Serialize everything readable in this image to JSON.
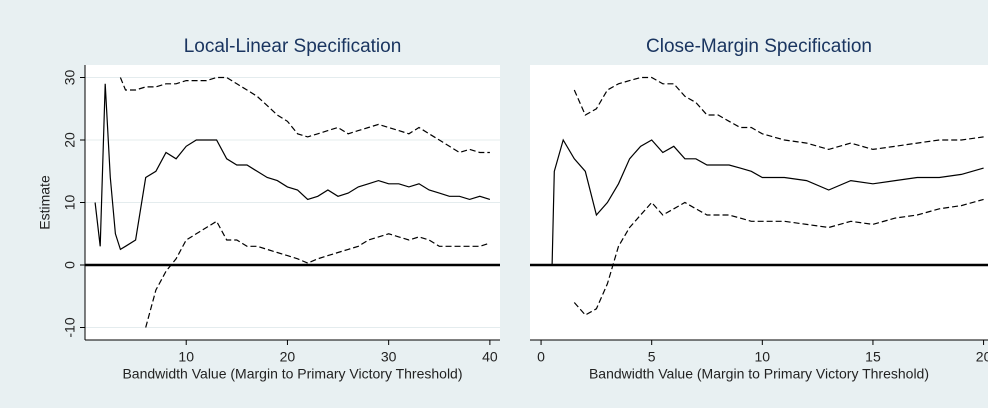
{
  "chart_data": [
    {
      "type": "line",
      "title": "Local-Linear Specification",
      "xlabel": "Bandwidth Value (Margin to Primary Victory Threshold)",
      "ylabel": "Estimate",
      "x": [
        1,
        1.5,
        2,
        2.5,
        3,
        3.5,
        4,
        5,
        6,
        7,
        8,
        9,
        10,
        11,
        12,
        13,
        14,
        15,
        16,
        17,
        18,
        19,
        20,
        21,
        22,
        23,
        24,
        25,
        26,
        27,
        28,
        29,
        30,
        31,
        32,
        33,
        34,
        35,
        36,
        37,
        38,
        39,
        40
      ],
      "series": [
        {
          "color": "#000000",
          "dash": false,
          "values": [
            10,
            3,
            29,
            14,
            5,
            2.5,
            3,
            4,
            14,
            15,
            18,
            17,
            19,
            20,
            20,
            20,
            17,
            16,
            16,
            15,
            14,
            13.5,
            12.5,
            12,
            10.5,
            11,
            12,
            11,
            11.5,
            12.5,
            13,
            13.5,
            13,
            13,
            12.5,
            13,
            12,
            11.5,
            11,
            11,
            10.5,
            11,
            10.5
          ]
        },
        {
          "color": "#000000",
          "dash": true,
          "values": [
            null,
            null,
            null,
            null,
            null,
            30,
            28,
            28,
            28.5,
            28.5,
            29,
            29,
            29.5,
            29.5,
            29.5,
            30,
            30,
            29,
            28,
            27,
            25.5,
            24,
            23,
            21,
            20.5,
            21,
            21.5,
            22,
            21,
            21.5,
            22,
            22.5,
            22,
            21.5,
            21,
            22,
            21,
            20,
            19,
            18,
            18.5,
            18,
            18
          ]
        },
        {
          "color": "#000000",
          "dash": true,
          "values": [
            null,
            null,
            null,
            null,
            null,
            null,
            null,
            null,
            -10,
            -4,
            -1,
            1,
            4,
            5,
            6,
            7,
            4,
            4,
            3,
            3,
            2.5,
            2,
            1.5,
            1,
            0.3,
            1,
            1.5,
            2,
            2.5,
            3,
            4,
            4.5,
            5,
            4.5,
            4,
            4.5,
            4,
            3,
            3,
            3,
            3,
            3,
            3.5
          ]
        }
      ],
      "xlim": [
        0,
        41
      ],
      "xticks": [
        10,
        20,
        30,
        40
      ],
      "ylim": [
        -12,
        32
      ],
      "yticks": [
        -10,
        0,
        10,
        20,
        30
      ],
      "grid": true,
      "hline": 0
    },
    {
      "type": "line",
      "title": "Close-Margin Specification",
      "xlabel": "Bandwidth Value (Margin to Primary Victory Threshold)",
      "x": [
        0,
        0.5,
        0.6,
        1,
        1.5,
        2,
        2.5,
        3,
        3.5,
        4,
        4.5,
        5,
        5.5,
        6,
        6.5,
        7,
        7.5,
        8,
        8.5,
        9,
        9.5,
        10,
        11,
        12,
        13,
        14,
        15,
        16,
        17,
        18,
        19,
        20
      ],
      "series": [
        {
          "color": "#000000",
          "dash": false,
          "values": [
            0,
            0,
            15,
            20,
            17,
            15,
            8,
            10,
            13,
            17,
            19,
            20,
            18,
            19,
            17,
            17,
            16,
            16,
            16,
            15.5,
            15,
            14,
            14,
            13.5,
            12,
            13.5,
            13,
            13.5,
            14,
            14,
            14.5,
            15.5
          ]
        },
        {
          "color": "#000000",
          "dash": true,
          "values": [
            null,
            null,
            null,
            null,
            28,
            24,
            25,
            28,
            29,
            29.5,
            30,
            30,
            29,
            29,
            27,
            26,
            24,
            24,
            23,
            22,
            22,
            21,
            20,
            19.5,
            18.5,
            19.5,
            18.5,
            19,
            19.5,
            20,
            20,
            20.5
          ]
        },
        {
          "color": "#000000",
          "dash": true,
          "values": [
            null,
            null,
            null,
            null,
            -6,
            -8,
            -7,
            -3,
            3,
            6,
            8,
            10,
            8,
            9,
            10,
            9,
            8,
            8,
            8,
            7.5,
            7,
            7,
            7,
            6.5,
            6,
            7,
            6.5,
            7.5,
            8,
            9,
            9.5,
            10.5
          ]
        }
      ],
      "xlim": [
        -0.5,
        20.2
      ],
      "xticks": [
        0,
        5,
        10,
        15,
        20
      ],
      "ylim": [
        -12,
        32
      ],
      "hline": 0
    }
  ]
}
